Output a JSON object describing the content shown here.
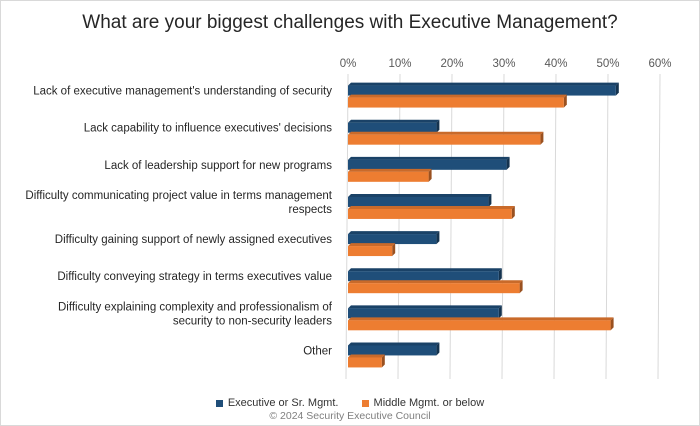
{
  "chart_data": {
    "type": "bar",
    "orientation": "horizontal",
    "title": "What are your biggest challenges with Executive Management?",
    "categories": [
      "Lack of executive management's understanding of security",
      "Lack capability to influence executives' decisions",
      "Lack of leadership support for new programs",
      "Difficulty communicating project value in terms management respects",
      "Difficulty gaining support of newly assigned executives",
      "Difficulty conveying strategy in terms executives value",
      "Difficulty explaining complexity and professionalism of security to non-security leaders",
      "Other"
    ],
    "category_lines": [
      [
        "Lack of executive management's understanding of security"
      ],
      [
        "Lack capability to influence executives' decisions"
      ],
      [
        "Lack of leadership support for new programs"
      ],
      [
        "Difficulty communicating project value in terms management",
        "respects"
      ],
      [
        "Difficulty gaining support of newly assigned executives"
      ],
      [
        "Difficulty conveying strategy in terms executives value"
      ],
      [
        "Difficulty explaining complexity and professionalism of",
        "security to non-security leaders"
      ],
      [
        "Other"
      ]
    ],
    "series": [
      {
        "name": "Executive or Sr. Mgmt.",
        "color": "#1f4e79",
        "values": [
          51.5,
          17,
          30.5,
          27,
          17,
          29,
          29,
          17
        ]
      },
      {
        "name": "Middle Mgmt. or below",
        "color": "#ed7d31",
        "values": [
          41.5,
          37,
          15.5,
          31.5,
          8.5,
          33,
          50.5,
          6.5
        ]
      }
    ],
    "xlim": [
      0,
      60
    ],
    "xticks": [
      "0%",
      "10%",
      "20%",
      "30%",
      "40%",
      "50%",
      "60%"
    ],
    "xtick_values": [
      0,
      10,
      20,
      30,
      40,
      50,
      60
    ],
    "grid": true,
    "legend_position": "bottom"
  },
  "copyright": "© 2024 Security Executive Council"
}
